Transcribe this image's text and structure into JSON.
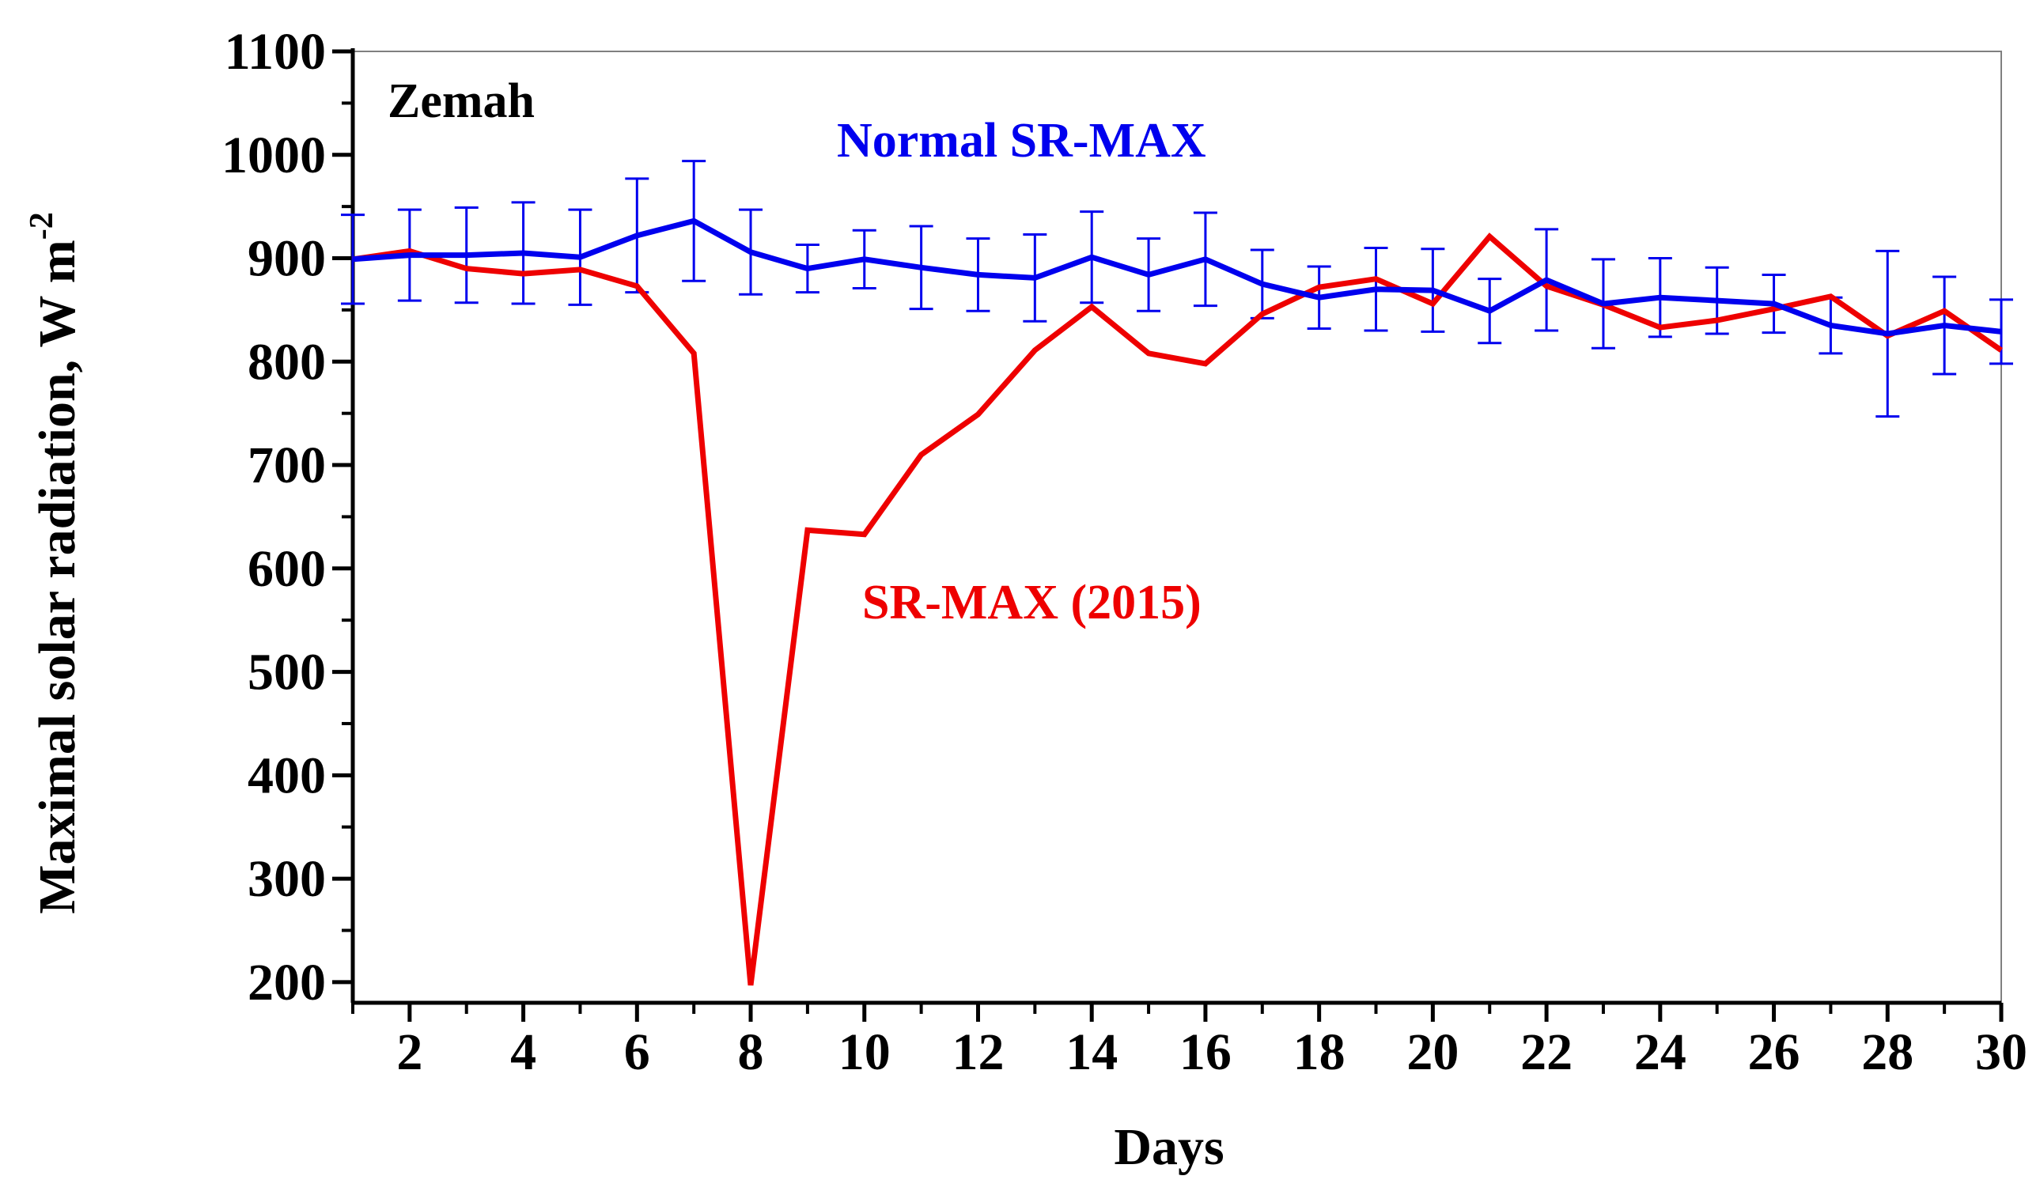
{
  "chart_data": {
    "type": "line",
    "title": "",
    "panel_label": "Zemah",
    "xlabel": "Days",
    "ylabel": "Maximal solar radiation, W m",
    "ylabel_superscript": "-2",
    "xlim": [
      1,
      30
    ],
    "ylim": [
      180,
      1100
    ],
    "xticks": [
      2,
      4,
      6,
      8,
      10,
      12,
      14,
      16,
      18,
      20,
      22,
      24,
      26,
      28,
      30
    ],
    "yticks": [
      200,
      300,
      400,
      500,
      600,
      700,
      800,
      900,
      1000,
      1100
    ],
    "grid": false,
    "x": [
      1,
      2,
      3,
      4,
      5,
      6,
      7,
      8,
      9,
      10,
      11,
      12,
      13,
      14,
      15,
      16,
      17,
      18,
      19,
      20,
      21,
      22,
      23,
      24,
      25,
      26,
      27,
      28,
      29,
      30
    ],
    "series": [
      {
        "name": "Normal SR-MAX",
        "label": "Normal SR-MAX",
        "color": "#0000ee",
        "values": [
          899,
          903,
          903,
          905,
          901,
          922,
          936,
          906,
          890,
          899,
          891,
          884,
          881,
          901,
          884,
          899,
          875,
          862,
          870,
          869,
          849,
          879,
          856,
          862,
          859,
          856,
          835,
          827,
          835,
          829
        ],
        "errors": [
          43,
          44,
          46,
          49,
          46,
          55,
          58,
          41,
          23,
          28,
          40,
          35,
          42,
          44,
          35,
          45,
          33,
          30,
          40,
          40,
          31,
          49,
          43,
          38,
          32,
          28,
          27,
          80,
          47,
          31
        ]
      },
      {
        "name": "SR-MAX (2015)",
        "label": "SR-MAX (2015)",
        "color": "#ee0000",
        "values": [
          899,
          907,
          890,
          885,
          889,
          873,
          808,
          197,
          637,
          633,
          710,
          749,
          811,
          853,
          808,
          798,
          846,
          872,
          880,
          856,
          921,
          873,
          855,
          833,
          840,
          851,
          863,
          825,
          849,
          811
        ]
      }
    ]
  }
}
